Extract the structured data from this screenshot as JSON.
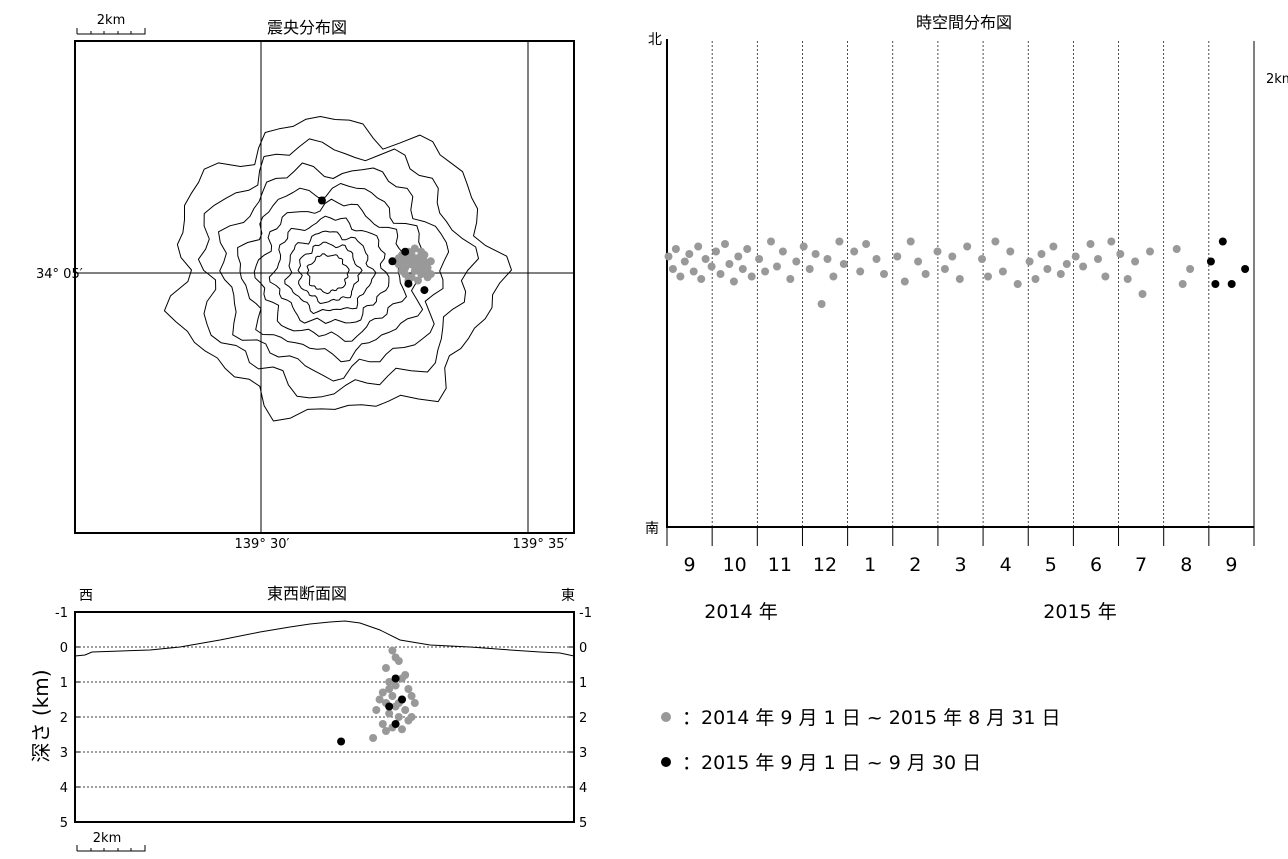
{
  "scale_label": "2km",
  "map": {
    "title": "震央分布図",
    "lat_label": "34° 05′",
    "lon_labels": [
      "139° 30′",
      "139° 35′"
    ],
    "chart_data": {
      "type": "scatter",
      "title": "震央分布図",
      "xlabel": "",
      "ylabel": "",
      "series": [
        {
          "color": "#999999",
          "points": [
            [
              139.542,
              34.087
            ],
            [
              139.545,
              34.085
            ],
            [
              139.547,
              34.086
            ],
            [
              139.549,
              34.088
            ],
            [
              139.551,
              34.087
            ],
            [
              139.544,
              34.089
            ],
            [
              139.546,
              34.09
            ],
            [
              139.548,
              34.084
            ],
            [
              139.55,
              34.083
            ],
            [
              139.552,
              34.085
            ],
            [
              139.543,
              34.086
            ],
            [
              139.547,
              34.082
            ],
            [
              139.549,
              34.081
            ],
            [
              139.551,
              34.089
            ],
            [
              139.553,
              34.087
            ],
            [
              139.546,
              34.088
            ],
            [
              139.548,
              34.091
            ],
            [
              139.545,
              34.083
            ],
            [
              139.55,
              34.086
            ],
            [
              139.544,
              34.084
            ],
            [
              139.552,
              34.082
            ],
            [
              139.547,
              34.089
            ],
            [
              139.549,
              34.085
            ],
            [
              139.543,
              34.088
            ],
            [
              139.551,
              34.084
            ],
            [
              139.546,
              34.081
            ],
            [
              139.548,
              34.087
            ],
            [
              139.55,
              34.09
            ],
            [
              139.545,
              34.087
            ],
            [
              139.553,
              34.083
            ]
          ]
        },
        {
          "color": "#000000",
          "points": [
            [
              139.519,
              34.106
            ],
            [
              139.541,
              34.087
            ],
            [
              139.545,
              34.09
            ],
            [
              139.546,
              34.08
            ],
            [
              139.551,
              34.078
            ]
          ]
        }
      ]
    }
  },
  "timespace": {
    "title": "時空間分布図",
    "north_label": "北",
    "south_label": "南",
    "side_label": "2km",
    "months": [
      "9",
      "10",
      "11",
      "12",
      "1",
      "2",
      "3",
      "4",
      "5",
      "6",
      "7",
      "8",
      "9"
    ],
    "years": [
      "2014 年",
      "2015 年"
    ],
    "chart_data": {
      "type": "scatter",
      "title": "時空間分布図",
      "x_unit": "month",
      "x_range": [
        "2014-09",
        "2015-09"
      ],
      "series": [
        {
          "color": "#999999",
          "points": [
            [
              "2014-09-02",
              0.03
            ],
            [
              "2014-09-05",
              -0.02
            ],
            [
              "2014-09-07",
              0.06
            ],
            [
              "2014-09-10",
              -0.05
            ],
            [
              "2014-09-13",
              0.01
            ],
            [
              "2014-09-16",
              0.04
            ],
            [
              "2014-09-19",
              -0.03
            ],
            [
              "2014-09-22",
              0.07
            ],
            [
              "2014-09-24",
              -0.06
            ],
            [
              "2014-09-27",
              0.02
            ],
            [
              "2014-10-01",
              -0.01
            ],
            [
              "2014-10-04",
              0.05
            ],
            [
              "2014-10-07",
              -0.04
            ],
            [
              "2014-10-10",
              0.08
            ],
            [
              "2014-10-13",
              0.0
            ],
            [
              "2014-10-16",
              -0.07
            ],
            [
              "2014-10-19",
              0.03
            ],
            [
              "2014-10-22",
              -0.02
            ],
            [
              "2014-10-25",
              0.06
            ],
            [
              "2014-10-28",
              -0.05
            ],
            [
              "2014-11-02",
              0.02
            ],
            [
              "2014-11-06",
              -0.03
            ],
            [
              "2014-11-10",
              0.09
            ],
            [
              "2014-11-14",
              -0.01
            ],
            [
              "2014-11-18",
              0.05
            ],
            [
              "2014-11-23",
              -0.06
            ],
            [
              "2014-11-27",
              0.01
            ],
            [
              "2014-12-02",
              0.07
            ],
            [
              "2014-12-06",
              -0.02
            ],
            [
              "2014-12-10",
              0.04
            ],
            [
              "2014-12-14",
              -0.16
            ],
            [
              "2014-12-18",
              0.02
            ],
            [
              "2014-12-22",
              -0.05
            ],
            [
              "2014-12-26",
              0.09
            ],
            [
              "2014-12-29",
              0.0
            ],
            [
              "2015-01-05",
              0.05
            ],
            [
              "2015-01-09",
              -0.03
            ],
            [
              "2015-01-13",
              0.08
            ],
            [
              "2015-01-20",
              0.02
            ],
            [
              "2015-01-25",
              -0.04
            ],
            [
              "2015-02-03",
              0.03
            ],
            [
              "2015-02-08",
              -0.07
            ],
            [
              "2015-02-12",
              0.09
            ],
            [
              "2015-02-17",
              0.01
            ],
            [
              "2015-02-22",
              -0.04
            ],
            [
              "2015-03-02",
              0.05
            ],
            [
              "2015-03-07",
              -0.02
            ],
            [
              "2015-03-12",
              0.03
            ],
            [
              "2015-03-17",
              -0.06
            ],
            [
              "2015-03-22",
              0.07
            ],
            [
              "2015-04-01",
              0.02
            ],
            [
              "2015-04-05",
              -0.05
            ],
            [
              "2015-04-10",
              0.09
            ],
            [
              "2015-04-15",
              -0.03
            ],
            [
              "2015-04-20",
              0.05
            ],
            [
              "2015-04-25",
              -0.08
            ],
            [
              "2015-05-03",
              0.01
            ],
            [
              "2015-05-07",
              -0.06
            ],
            [
              "2015-05-11",
              0.04
            ],
            [
              "2015-05-15",
              -0.02
            ],
            [
              "2015-05-19",
              0.07
            ],
            [
              "2015-05-24",
              -0.04
            ],
            [
              "2015-05-28",
              0.0
            ],
            [
              "2015-06-03",
              0.03
            ],
            [
              "2015-06-08",
              -0.01
            ],
            [
              "2015-06-13",
              0.08
            ],
            [
              "2015-06-18",
              0.02
            ],
            [
              "2015-06-23",
              -0.05
            ],
            [
              "2015-06-27",
              0.09
            ],
            [
              "2015-07-03",
              0.04
            ],
            [
              "2015-07-08",
              -0.06
            ],
            [
              "2015-07-13",
              0.01
            ],
            [
              "2015-07-18",
              -0.12
            ],
            [
              "2015-07-23",
              0.05
            ],
            [
              "2015-08-10",
              0.06
            ],
            [
              "2015-08-14",
              -0.08
            ],
            [
              "2015-08-19",
              -0.02
            ]
          ]
        },
        {
          "color": "#000000",
          "points": [
            [
              "2015-09-02",
              0.01
            ],
            [
              "2015-09-05",
              -0.08
            ],
            [
              "2015-09-10",
              0.09
            ],
            [
              "2015-09-16",
              -0.08
            ],
            [
              "2015-09-25",
              -0.02
            ]
          ]
        }
      ]
    }
  },
  "section": {
    "title": "東西断面図",
    "west_label": "西",
    "east_label": "東",
    "ylabel": "深さ (km)",
    "depth_ticks": [
      "-1",
      "0",
      "1",
      "2",
      "3",
      "4",
      "5"
    ],
    "chart_data": {
      "type": "scatter",
      "title": "東西断面図",
      "ylabel": "深さ (km)",
      "ylim": [
        -1,
        5
      ],
      "series": [
        {
          "color": "#999999",
          "points": [
            [
              139.541,
              0.1
            ],
            [
              139.543,
              0.4
            ],
            [
              139.539,
              0.6
            ],
            [
              139.545,
              0.8
            ],
            [
              139.54,
              1.0
            ],
            [
              139.542,
              1.1
            ],
            [
              139.546,
              1.2
            ],
            [
              139.538,
              1.3
            ],
            [
              139.541,
              1.4
            ],
            [
              139.544,
              1.5
            ],
            [
              139.547,
              1.4
            ],
            [
              139.539,
              1.6
            ],
            [
              139.542,
              1.7
            ],
            [
              139.545,
              1.8
            ],
            [
              139.54,
              1.9
            ],
            [
              139.543,
              2.0
            ],
            [
              139.546,
              2.1
            ],
            [
              139.538,
              2.2
            ],
            [
              139.541,
              2.3
            ],
            [
              139.544,
              2.35
            ],
            [
              139.537,
              1.5
            ],
            [
              139.548,
              1.6
            ],
            [
              139.536,
              1.8
            ],
            [
              139.547,
              2.0
            ],
            [
              139.539,
              2.4
            ],
            [
              139.542,
              0.3
            ],
            [
              139.535,
              2.6
            ],
            [
              139.544,
              0.9
            ],
            [
              139.54,
              1.2
            ],
            [
              139.543,
              1.6
            ]
          ]
        },
        {
          "color": "#000000",
          "points": [
            [
              139.542,
              0.9
            ],
            [
              139.54,
              1.7
            ],
            [
              139.544,
              1.5
            ],
            [
              139.542,
              2.2
            ],
            [
              139.525,
              2.7
            ]
          ]
        }
      ]
    }
  },
  "legend": {
    "items": [
      {
        "color": "#999999",
        "label": "：2014 年 9 月 1 日 ~ 2015 年 8 月 31 日"
      },
      {
        "color": "#000000",
        "label": "：2015 年 9 月 1 日 ~  9 月 30 日"
      }
    ]
  }
}
